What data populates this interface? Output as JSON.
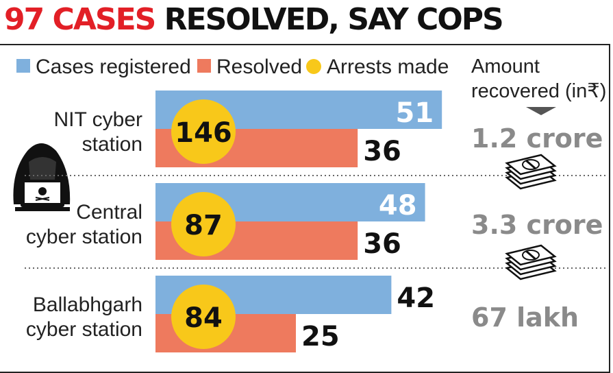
{
  "headline": {
    "part1": "97 CASES",
    "part2": "RESOLVED, SAY COPS"
  },
  "colors": {
    "registered": "#7fb0dd",
    "resolved": "#ee7a5e",
    "arrests": "#f8c81a",
    "recovered_text": "#8a8a8a",
    "headline_red": "#e21f26"
  },
  "icons": {
    "hacker": "hacker-laptop-icon",
    "money": "cash-stack-icon",
    "arrow": "triangle-down-icon"
  },
  "chart_data": {
    "type": "bar",
    "orientation": "horizontal",
    "categories": [
      "NIT cyber station",
      "Central cyber station",
      "Ballabhgarh cyber station"
    ],
    "category_lines": [
      [
        "NIT cyber",
        "station"
      ],
      [
        "Central",
        "cyber station"
      ],
      [
        "Ballabhgarh",
        "cyber station"
      ]
    ],
    "series": [
      {
        "name": "Cases registered",
        "values": [
          51,
          48,
          42
        ]
      },
      {
        "name": "Resolved",
        "values": [
          36,
          36,
          25
        ]
      },
      {
        "name": "Arrests made",
        "values": [
          146,
          87,
          84
        ]
      }
    ],
    "recovered": {
      "title_lines": [
        "Amount",
        "recovered (in₹)"
      ],
      "values": [
        "1.2 crore",
        "3.3 crore",
        "67 lakh"
      ]
    },
    "legend_position": "top",
    "grid": false
  }
}
